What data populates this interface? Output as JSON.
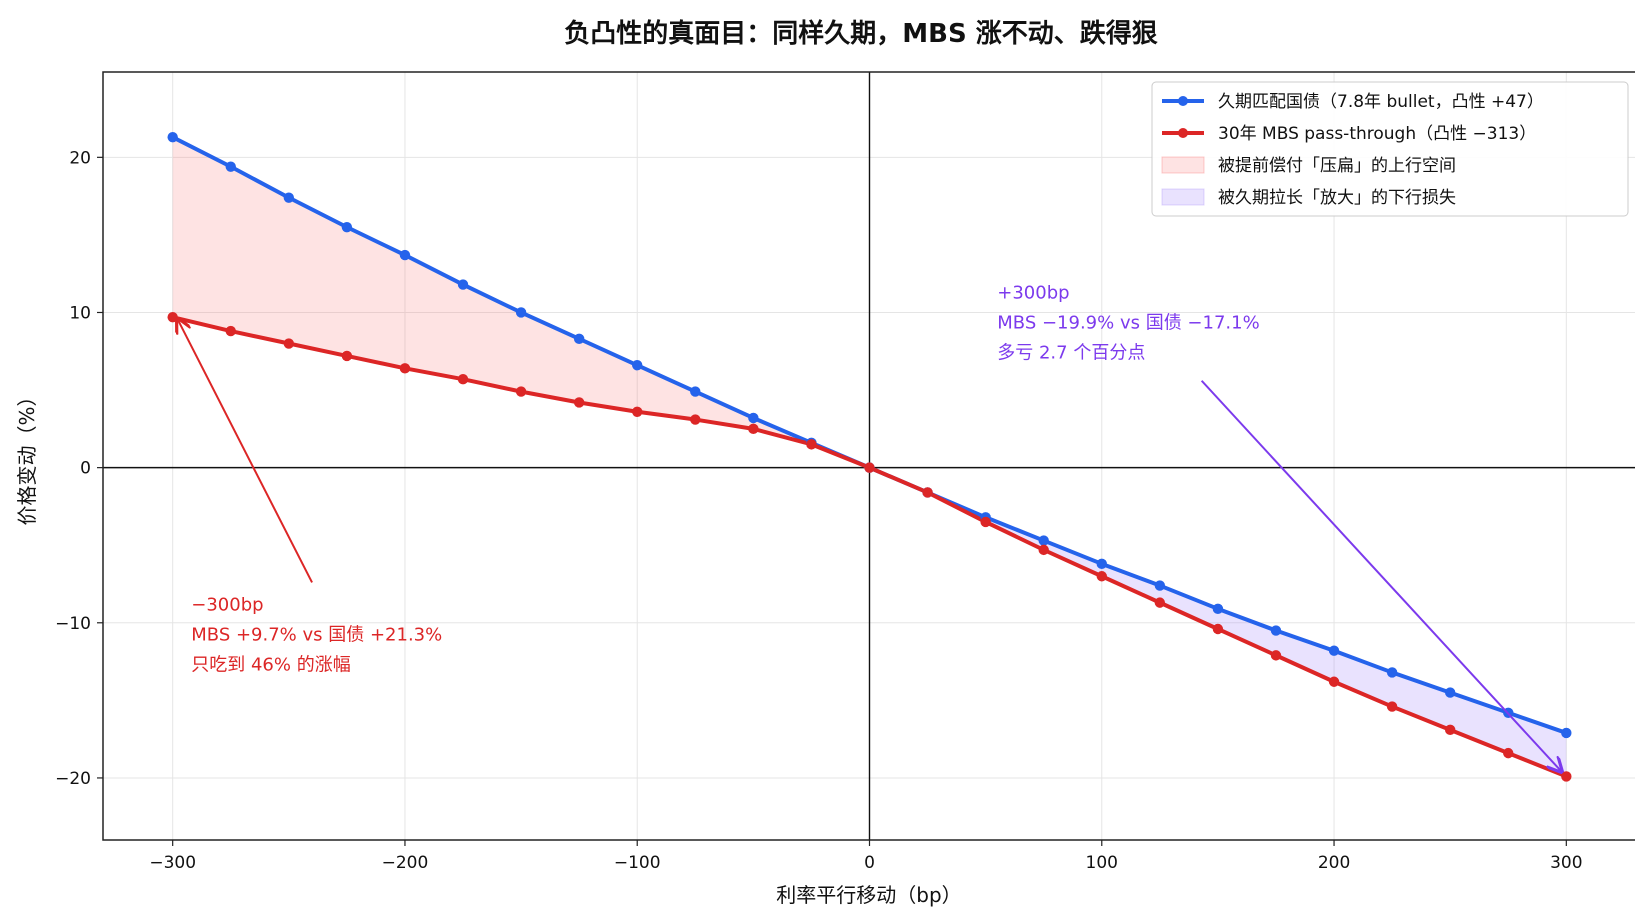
{
  "chart_data": {
    "type": "line",
    "title": "负凸性的真面目：同样久期，MBS 涨不动、跌得狠",
    "xlabel": "利率平行移动（bp）",
    "ylabel": "价格变动（%）",
    "xlim": [
      -330,
      330
    ],
    "ylim": [
      -24,
      25.5
    ],
    "xticks": [
      -300,
      -200,
      -100,
      0,
      100,
      200,
      300
    ],
    "yticks": [
      -20,
      -10,
      0,
      10,
      20
    ],
    "grid": true,
    "legend_position": "top-right",
    "x": [
      -300,
      -275,
      -250,
      -225,
      -200,
      -175,
      -150,
      -125,
      -100,
      -75,
      -50,
      -25,
      0,
      25,
      50,
      75,
      100,
      125,
      150,
      175,
      200,
      225,
      250,
      275,
      300
    ],
    "series": [
      {
        "name": "久期匹配国债（7.8年 bullet，凸性 +47）",
        "color": "#2563eb",
        "values": [
          21.3,
          19.4,
          17.4,
          15.5,
          13.7,
          11.8,
          10.0,
          8.3,
          6.6,
          4.9,
          3.2,
          1.6,
          0,
          -1.6,
          -3.2,
          -4.7,
          -6.2,
          -7.6,
          -9.1,
          -10.5,
          -11.8,
          -13.2,
          -14.5,
          -15.8,
          -17.1
        ]
      },
      {
        "name": "30年 MBS pass-through（凸性 −313）",
        "color": "#dc2626",
        "values": [
          9.7,
          8.8,
          8.0,
          7.2,
          6.4,
          5.7,
          4.9,
          4.2,
          3.6,
          3.1,
          2.5,
          1.5,
          0,
          -1.6,
          -3.5,
          -5.3,
          -7.0,
          -8.7,
          -10.4,
          -12.1,
          -13.8,
          -15.4,
          -16.9,
          -18.4,
          -19.9
        ]
      }
    ],
    "fills": [
      {
        "name": "被提前偿付「压扁」的上行空间",
        "color": "#f87171",
        "opacity": 0.2,
        "x_range": [
          -300,
          0
        ]
      },
      {
        "name": "被久期拉长「放大」的下行损失",
        "color": "#a78bfa",
        "opacity": 0.25,
        "x_range": [
          0,
          300
        ]
      }
    ],
    "annotations": [
      {
        "lines": [
          "−300bp",
          "MBS +9.7%  vs  国债 +21.3%",
          "只吃到 46% 的涨幅"
        ],
        "color": "#dc2626",
        "text_at": [
          -292,
          -9.2
        ],
        "arrow_from": [
          -240,
          -7.4
        ],
        "arrow_to": [
          -298,
          9.6
        ]
      },
      {
        "lines": [
          "+300bp",
          "MBS −19.9%  vs  国债 −17.1%",
          "多亏 2.7 个百分点"
        ],
        "color": "#7c3aed",
        "text_at": [
          55,
          10.9
        ],
        "arrow_from": [
          143,
          5.6
        ],
        "arrow_to": [
          298,
          -19.6
        ]
      }
    ]
  }
}
